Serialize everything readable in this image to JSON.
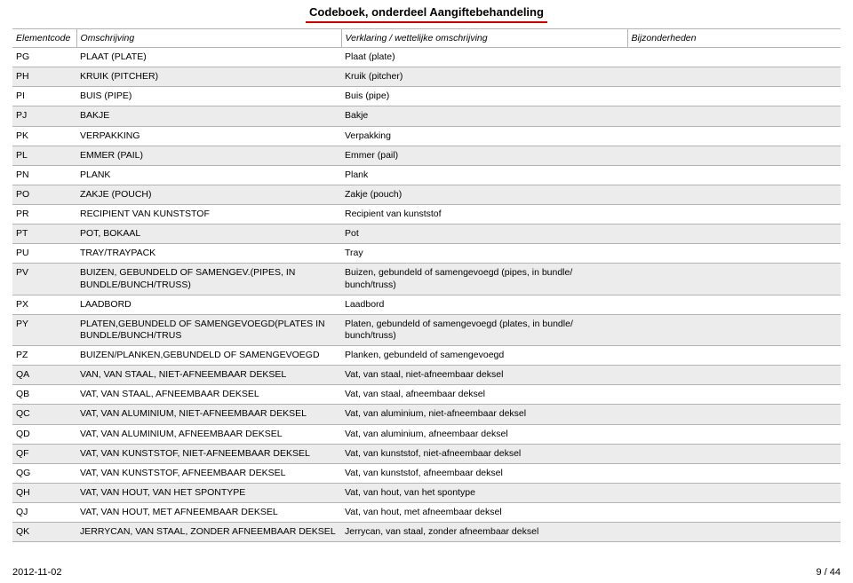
{
  "title": "Codeboek, onderdeel Aangiftebehandeling",
  "columns": {
    "c0": "Elementcode",
    "c1": "Omschrijving",
    "c2": "Verklaring / wettelijke omschrijving",
    "c3": "Bijzonderheden"
  },
  "rows": [
    {
      "code": "PG",
      "oms": "PLAAT (PLATE)",
      "ver": "Plaat (plate)",
      "bij": ""
    },
    {
      "code": "PH",
      "oms": "KRUIK (PITCHER)",
      "ver": "Kruik (pitcher)",
      "bij": ""
    },
    {
      "code": "PI",
      "oms": "BUIS (PIPE)",
      "ver": "Buis (pipe)",
      "bij": ""
    },
    {
      "code": "PJ",
      "oms": "BAKJE",
      "ver": "Bakje",
      "bij": ""
    },
    {
      "code": "PK",
      "oms": "VERPAKKING",
      "ver": "Verpakking",
      "bij": ""
    },
    {
      "code": "PL",
      "oms": "EMMER (PAIL)",
      "ver": "Emmer (pail)",
      "bij": ""
    },
    {
      "code": "PN",
      "oms": "PLANK",
      "ver": "Plank",
      "bij": ""
    },
    {
      "code": "PO",
      "oms": "ZAKJE (POUCH)",
      "ver": "Zakje (pouch)",
      "bij": ""
    },
    {
      "code": "PR",
      "oms": "RECIPIENT VAN KUNSTSTOF",
      "ver": "Recipient van kunststof",
      "bij": ""
    },
    {
      "code": "PT",
      "oms": "POT, BOKAAL",
      "ver": "Pot",
      "bij": ""
    },
    {
      "code": "PU",
      "oms": "TRAY/TRAYPACK",
      "ver": "Tray",
      "bij": ""
    },
    {
      "code": "PV",
      "oms": "BUIZEN, GEBUNDELD OF SAMENGEV.(PIPES, IN BUNDLE/BUNCH/TRUSS)",
      "ver": "Buizen, gebundeld of samengevoegd (pipes, in bundle/ bunch/truss)",
      "bij": ""
    },
    {
      "code": "PX",
      "oms": "LAADBORD",
      "ver": "Laadbord",
      "bij": ""
    },
    {
      "code": "PY",
      "oms": "PLATEN,GEBUNDELD OF SAMENGEVOEGD(PLATES IN BUNDLE/BUNCH/TRUS",
      "ver": "Platen, gebundeld of samengevoegd (plates, in bundle/ bunch/truss)",
      "bij": ""
    },
    {
      "code": "PZ",
      "oms": "BUIZEN/PLANKEN,GEBUNDELD OF SAMENGEVOEGD",
      "ver": "Planken, gebundeld of samengevoegd",
      "bij": ""
    },
    {
      "code": "QA",
      "oms": "VAN, VAN STAAL, NIET-AFNEEMBAAR DEKSEL",
      "ver": "Vat, van staal, niet-afneembaar deksel",
      "bij": ""
    },
    {
      "code": "QB",
      "oms": "VAT, VAN STAAL, AFNEEMBAAR DEKSEL",
      "ver": "Vat, van staal, afneembaar deksel",
      "bij": ""
    },
    {
      "code": "QC",
      "oms": "VAT, VAN ALUMINIUM, NIET-AFNEEMBAAR DEKSEL",
      "ver": "Vat, van aluminium, niet-afneembaar deksel",
      "bij": ""
    },
    {
      "code": "QD",
      "oms": "VAT, VAN ALUMINIUM, AFNEEMBAAR DEKSEL",
      "ver": "Vat, van aluminium, afneembaar deksel",
      "bij": ""
    },
    {
      "code": "QF",
      "oms": "VAT, VAN KUNSTSTOF, NIET-AFNEEMBAAR DEKSEL",
      "ver": "Vat, van kunststof, niet-afneembaar deksel",
      "bij": ""
    },
    {
      "code": "QG",
      "oms": "VAT, VAN KUNSTSTOF, AFNEEMBAAR DEKSEL",
      "ver": "Vat, van kunststof, afneembaar deksel",
      "bij": ""
    },
    {
      "code": "QH",
      "oms": "VAT, VAN HOUT, VAN HET SPONTYPE",
      "ver": "Vat, van hout, van het spontype",
      "bij": ""
    },
    {
      "code": "QJ",
      "oms": "VAT, VAN HOUT, MET AFNEEMBAAR DEKSEL",
      "ver": "Vat, van hout, met afneembaar deksel",
      "bij": ""
    },
    {
      "code": "QK",
      "oms": "JERRYCAN, VAN STAAL, ZONDER AFNEEMBAAR DEKSEL",
      "ver": "Jerrycan, van staal, zonder afneembaar deksel",
      "bij": ""
    }
  ],
  "footer": {
    "date": "2012-11-02",
    "page": "9 / 44"
  },
  "style": {
    "title_underline_color": "#d00000",
    "border_color": "#b3b3b3",
    "alt_row_bg": "#ececec",
    "background": "#ffffff",
    "font_size_body": 10.5,
    "font_size_title": 13
  }
}
